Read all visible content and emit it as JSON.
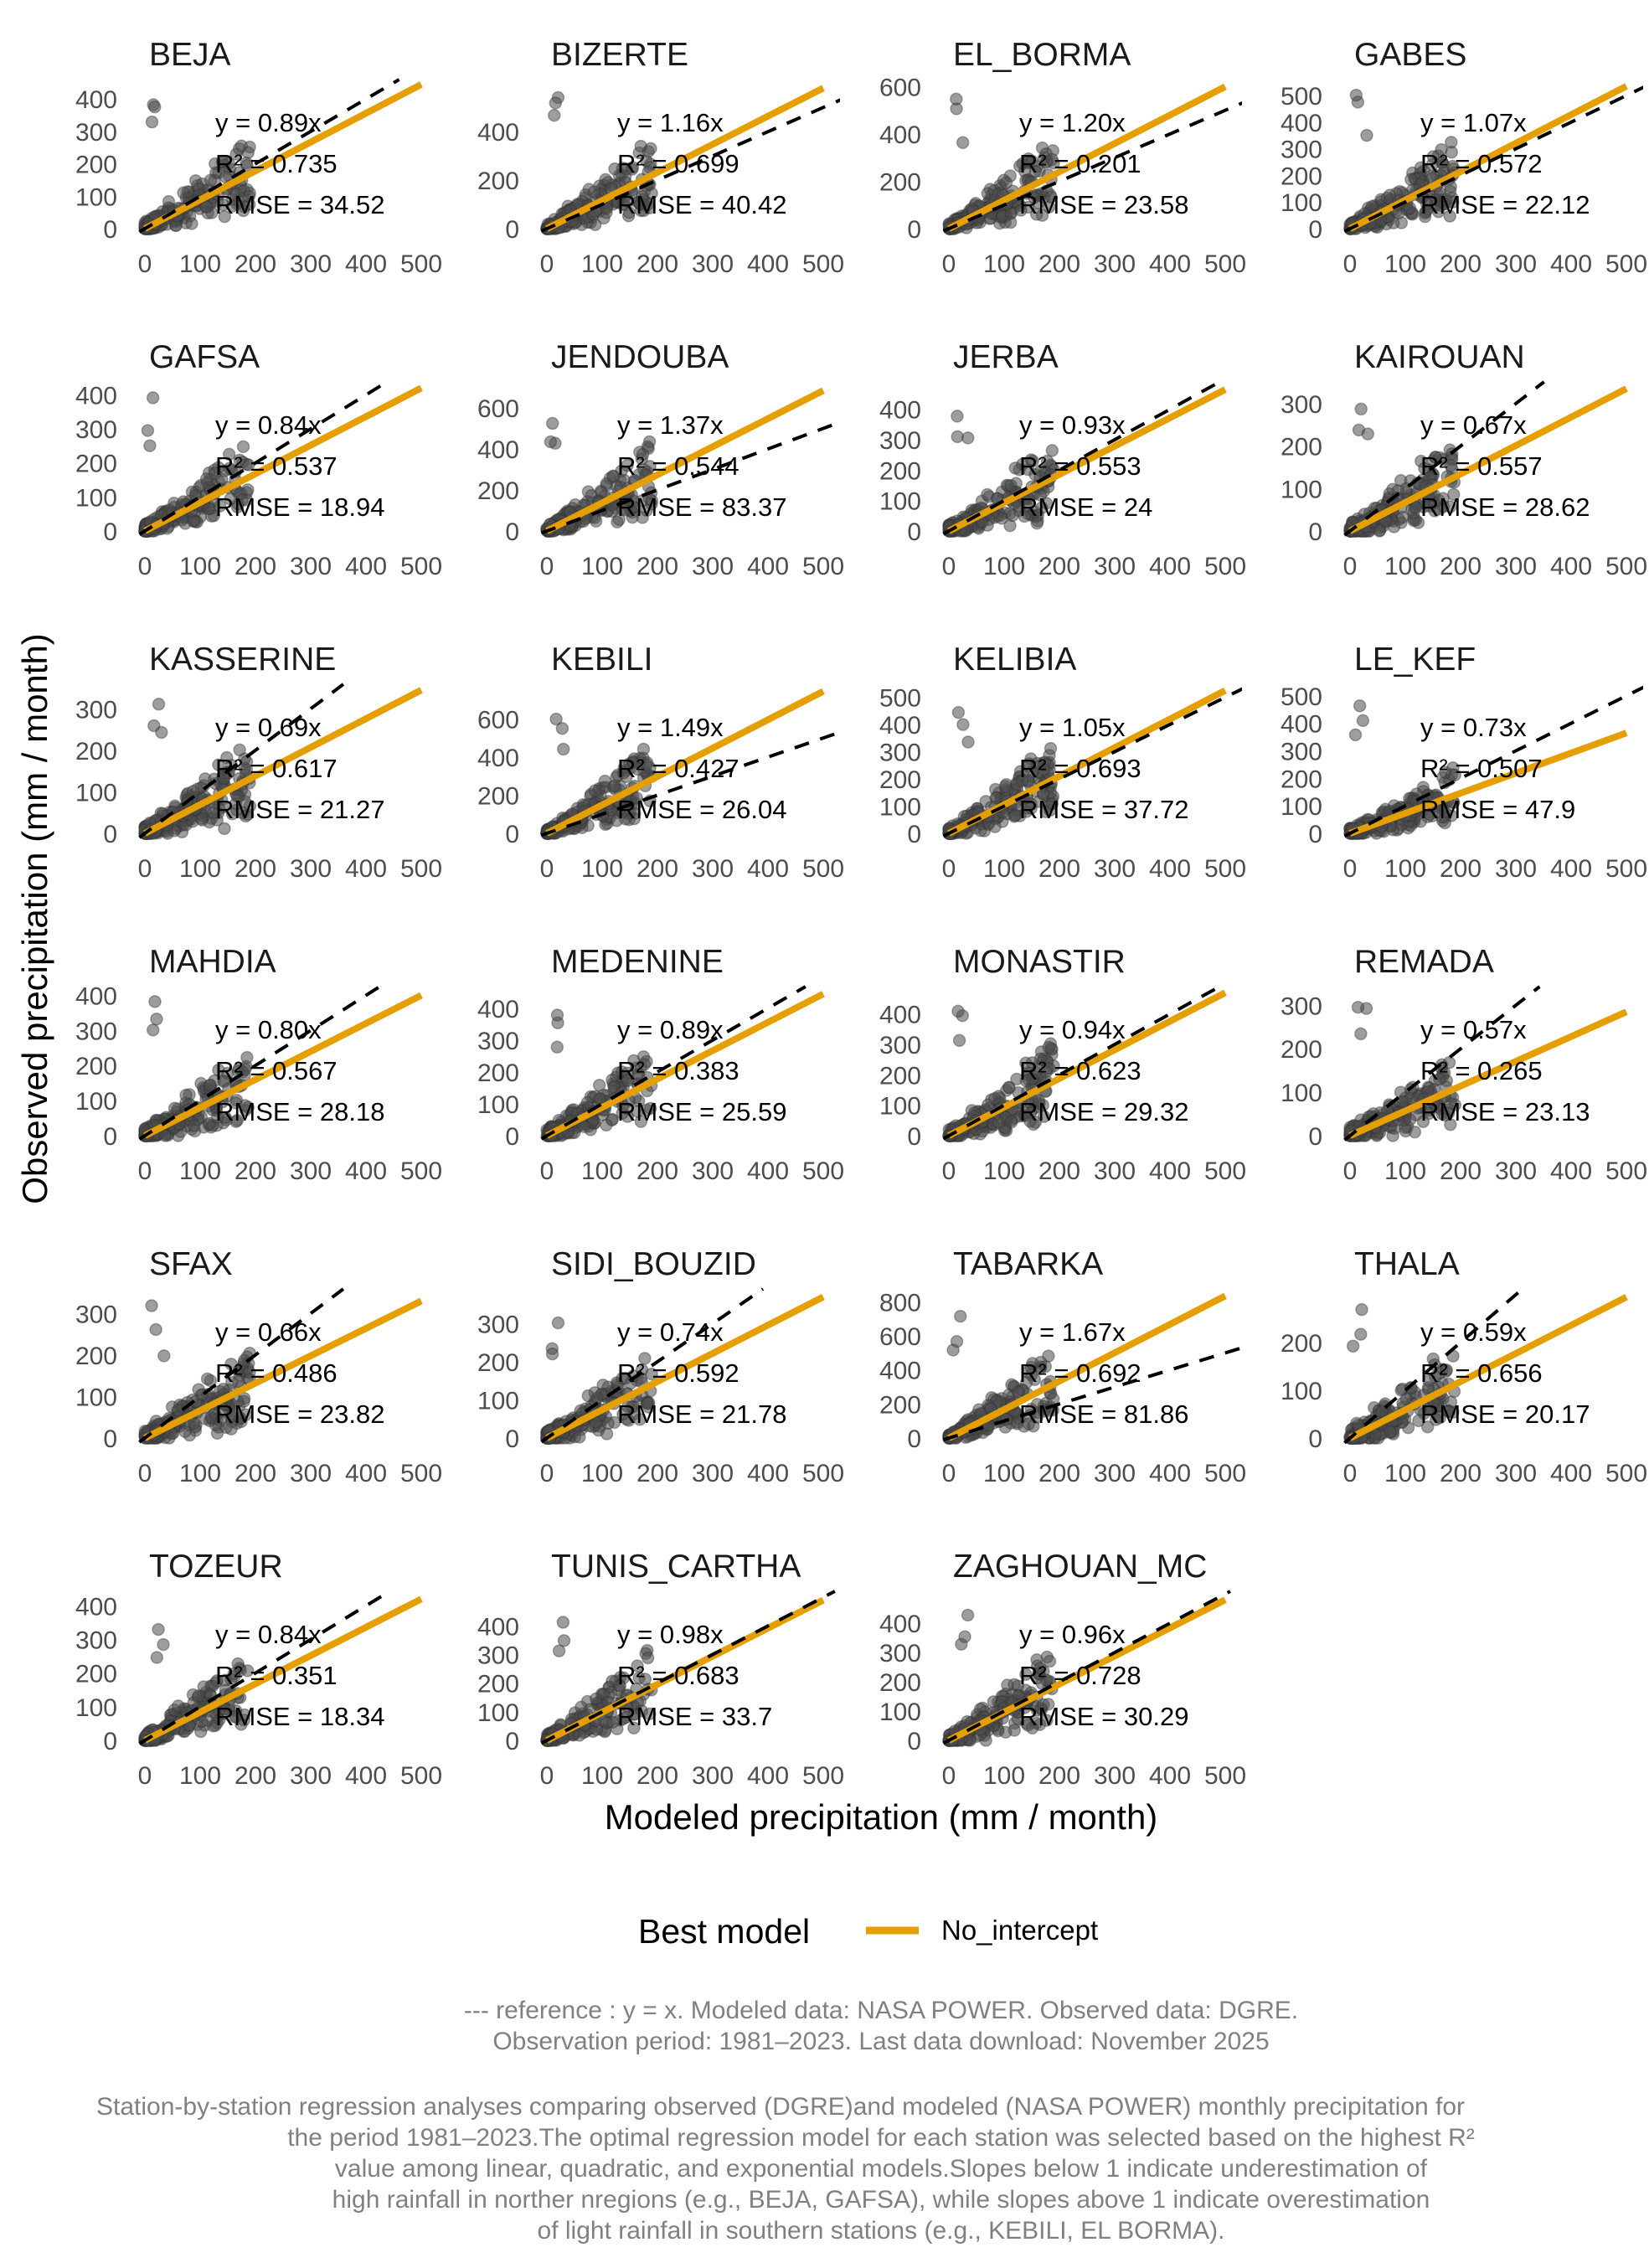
{
  "chart_data": {
    "type": "scatter",
    "layout": "faceted",
    "xlabel": "Modeled precipitation (mm / month)",
    "ylabel": "Observed precipitation (mm / month)",
    "x_ticks": [
      0,
      100,
      200,
      300,
      400,
      500
    ],
    "xlim": [
      0,
      500
    ],
    "grid": false,
    "colors": {
      "fit_line": "#E69F00",
      "reference_line": "#000000",
      "points": "#4d4d4d"
    },
    "legend": {
      "title": "Best model",
      "position": "bottom",
      "entries": [
        {
          "label": "No_intercept",
          "color": "#E69F00"
        }
      ]
    },
    "panels": [
      {
        "station": "BEJA",
        "slope": 0.89,
        "equation": "y = 0.89x",
        "r2": "R² = 0.735",
        "rmse": "RMSE = 34.52",
        "y_ticks": [
          0,
          100,
          200,
          300,
          400
        ],
        "ylim": [
          0,
          460
        ]
      },
      {
        "station": "BIZERTE",
        "slope": 1.16,
        "equation": "y = 1.16x",
        "r2": "R² = 0.699",
        "rmse": "RMSE = 40.42",
        "y_ticks": [
          0,
          200,
          400
        ],
        "ylim": [
          0,
          615
        ]
      },
      {
        "station": "EL_BORMA",
        "slope": 1.2,
        "equation": "y = 1.20x",
        "r2": "R² = 0.201",
        "rmse": "RMSE = 23.58",
        "y_ticks": [
          0,
          200,
          400,
          600
        ],
        "ylim": [
          0,
          630
        ]
      },
      {
        "station": "GABES",
        "slope": 1.07,
        "equation": "y = 1.07x",
        "r2": "R² = 0.572",
        "rmse": "RMSE = 22.12",
        "y_ticks": [
          0,
          100,
          200,
          300,
          400,
          500
        ],
        "ylim": [
          0,
          560
        ]
      },
      {
        "station": "GAFSA",
        "slope": 0.84,
        "equation": "y = 0.84x",
        "r2": "R² = 0.537",
        "rmse": "RMSE = 18.94",
        "y_ticks": [
          0,
          100,
          200,
          300,
          400
        ],
        "ylim": [
          0,
          438
        ]
      },
      {
        "station": "JENDOUBA",
        "slope": 1.37,
        "equation": "y = 1.37x",
        "r2": "R² = 0.544",
        "rmse": "RMSE = 83.37",
        "y_ticks": [
          0,
          200,
          400,
          600
        ],
        "ylim": [
          0,
          727
        ]
      },
      {
        "station": "JERBA",
        "slope": 0.93,
        "equation": "y = 0.93x",
        "r2": "R² = 0.553",
        "rmse": "RMSE = 24",
        "y_ticks": [
          0,
          100,
          200,
          300,
          400
        ],
        "ylim": [
          0,
          490
        ]
      },
      {
        "station": "KAIROUAN",
        "slope": 0.67,
        "equation": "y = 0.67x",
        "r2": "R² = 0.557",
        "rmse": "RMSE = 28.62",
        "y_ticks": [
          0,
          100,
          200,
          300
        ],
        "ylim": [
          0,
          351
        ]
      },
      {
        "station": "KASSERINE",
        "slope": 0.69,
        "equation": "y = 0.69x",
        "r2": "R² = 0.617",
        "rmse": "RMSE = 21.27",
        "y_ticks": [
          0,
          100,
          200,
          300
        ],
        "ylim": [
          0,
          359
        ]
      },
      {
        "station": "KEBILI",
        "slope": 1.49,
        "equation": "y = 1.49x",
        "r2": "R² = 0.427",
        "rmse": "RMSE = 26.04",
        "y_ticks": [
          0,
          200,
          400,
          600
        ],
        "ylim": [
          0,
          782
        ]
      },
      {
        "station": "KELIBIA",
        "slope": 1.05,
        "equation": "y = 1.05x",
        "r2": "R² = 0.693",
        "rmse": "RMSE = 37.72",
        "y_ticks": [
          0,
          100,
          200,
          300,
          400,
          500
        ],
        "ylim": [
          0,
          548
        ]
      },
      {
        "station": "LE_KEF",
        "slope": 0.73,
        "equation": "y = 0.73x",
        "r2": "R² = 0.507",
        "rmse": "RMSE = 47.9",
        "y_ticks": [
          0,
          100,
          200,
          300,
          400,
          500
        ],
        "ylim": [
          0,
          542
        ]
      },
      {
        "station": "MAHDIA",
        "slope": 0.8,
        "equation": "y = 0.80x",
        "r2": "R² = 0.567",
        "rmse": "RMSE = 28.18",
        "y_ticks": [
          0,
          100,
          200,
          300,
          400
        ],
        "ylim": [
          0,
          425
        ]
      },
      {
        "station": "MEDENINE",
        "slope": 0.89,
        "equation": "y = 0.89x",
        "r2": "R² = 0.383",
        "rmse": "RMSE = 25.59",
        "y_ticks": [
          0,
          100,
          200,
          300,
          400
        ],
        "ylim": [
          0,
          468
        ]
      },
      {
        "station": "MONASTIR",
        "slope": 0.94,
        "equation": "y = 0.94x",
        "r2": "R² = 0.623",
        "rmse": "RMSE = 29.32",
        "y_ticks": [
          0,
          100,
          200,
          300,
          400
        ],
        "ylim": [
          0,
          490
        ]
      },
      {
        "station": "REMADA",
        "slope": 0.57,
        "equation": "y = 0.57x",
        "r2": "R² = 0.265",
        "rmse": "RMSE = 23.13",
        "y_ticks": [
          0,
          100,
          200,
          300
        ],
        "ylim": [
          0,
          343
        ]
      },
      {
        "station": "SFAX",
        "slope": 0.66,
        "equation": "y = 0.66x",
        "r2": "R² = 0.486",
        "rmse": "RMSE = 23.82",
        "y_ticks": [
          0,
          100,
          200,
          300
        ],
        "ylim": [
          0,
          359
        ]
      },
      {
        "station": "SIDI_BOUZID",
        "slope": 0.74,
        "equation": "y = 0.74x",
        "r2": "R² = 0.592",
        "rmse": "RMSE = 21.78",
        "y_ticks": [
          0,
          100,
          200,
          300
        ],
        "ylim": [
          0,
          391
        ]
      },
      {
        "station": "TABARKA",
        "slope": 1.67,
        "equation": "y = 1.67x",
        "r2": "R² = 0.692",
        "rmse": "RMSE = 81.86",
        "y_ticks": [
          0,
          200,
          400,
          600,
          800
        ],
        "ylim": [
          0,
          876
        ]
      },
      {
        "station": "THALA",
        "slope": 0.59,
        "equation": "y = 0.59x",
        "r2": "R² = 0.656",
        "rmse": "RMSE = 20.17",
        "y_ticks": [
          0,
          100,
          200
        ],
        "ylim": [
          0,
          312
        ]
      },
      {
        "station": "TOZEUR",
        "slope": 0.84,
        "equation": "y = 0.84x",
        "r2": "R² = 0.351",
        "rmse": "RMSE = 18.34",
        "y_ticks": [
          0,
          100,
          200,
          300,
          400
        ],
        "ylim": [
          0,
          443
        ]
      },
      {
        "station": "TUNIS_CARTHA",
        "slope": 0.98,
        "equation": "y = 0.98x",
        "r2": "R² = 0.683",
        "rmse": "RMSE = 33.7",
        "y_ticks": [
          0,
          100,
          200,
          300,
          400
        ],
        "ylim": [
          0,
          521
        ]
      },
      {
        "station": "ZAGHOUAN_MC",
        "slope": 0.96,
        "equation": "y = 0.96x",
        "r2": "R² = 0.728",
        "rmse": "RMSE = 30.29",
        "y_ticks": [
          0,
          100,
          200,
          300,
          400
        ],
        "ylim": [
          0,
          509
        ]
      }
    ]
  },
  "notes": {
    "reference_line_1": "--- reference : y = x. Modeled data: NASA POWER. Observed data: DGRE.",
    "reference_line_2": "Observation period: 1981–2023. Last data download: November 2025",
    "caption_lines": [
      "Station-by-station regression analyses comparing observed (DGRE)and modeled (NASA POWER) monthly precipitation for",
      "the period 1981–2023.The optimal regression model for each station was selected based on the highest R²",
      "value among linear, quadratic, and exponential models.Slopes below 1 indicate underestimation of",
      "high rainfall in norther nregions (e.g., BEJA, GAFSA), while slopes above 1 indicate overestimation",
      "of light rainfall in southern stations (e.g., KEBILI, EL BORMA)."
    ]
  }
}
